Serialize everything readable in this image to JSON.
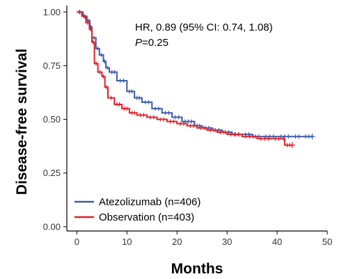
{
  "chart_data": {
    "type": "line",
    "title": "",
    "xlabel": "Months",
    "ylabel": "Disease-free survival",
    "xlim": [
      -2,
      50
    ],
    "ylim": [
      -0.02,
      1.03
    ],
    "xticks": [
      "0",
      "10",
      "20",
      "30",
      "40",
      "50"
    ],
    "xtick_values": [
      0,
      10,
      20,
      30,
      40,
      50
    ],
    "yticks": [
      "0.00",
      "0.25",
      "0.50",
      "0.75",
      "1.00"
    ],
    "ytick_values": [
      0,
      0.25,
      0.5,
      0.75,
      1.0
    ],
    "grid": false,
    "legend_position": "bottom-left",
    "annotations": {
      "hr_line": "HR, 0.89 (95% CI: 0.74, 1.08)",
      "p_italic": "P",
      "p_rest": "=0.25"
    },
    "series": [
      {
        "name": "Atezolizumab (n=406)",
        "color": "#3a5ba8",
        "x": [
          0,
          1.2,
          2.0,
          2.6,
          3.0,
          3.8,
          4.5,
          5.3,
          5.8,
          6.5,
          8.0,
          10.0,
          11.5,
          13.0,
          15.0,
          17.0,
          19.0,
          21.0,
          23.5,
          25.0,
          27.0,
          29.0,
          31.0,
          33.0,
          35.0,
          37.0,
          40.0,
          43.0,
          45.0,
          47.0
        ],
        "y": [
          1.0,
          0.98,
          0.96,
          0.93,
          0.88,
          0.83,
          0.8,
          0.77,
          0.74,
          0.72,
          0.68,
          0.63,
          0.6,
          0.58,
          0.55,
          0.53,
          0.51,
          0.49,
          0.47,
          0.46,
          0.45,
          0.44,
          0.43,
          0.43,
          0.42,
          0.42,
          0.42,
          0.42,
          0.42,
          0.42
        ]
      },
      {
        "name": "Observation (n=403)",
        "color": "#e0202a",
        "x": [
          0,
          1.0,
          1.8,
          2.5,
          3.0,
          3.5,
          4.2,
          5.0,
          5.6,
          6.2,
          7.5,
          9.0,
          10.5,
          12.0,
          14.0,
          16.0,
          18.0,
          20.0,
          22.0,
          24.0,
          26.0,
          28.0,
          30.0,
          33.0,
          36.0,
          39.0,
          41.0,
          41.5,
          43.0
        ],
        "y": [
          1.0,
          0.98,
          0.95,
          0.92,
          0.86,
          0.76,
          0.72,
          0.7,
          0.65,
          0.6,
          0.57,
          0.55,
          0.53,
          0.52,
          0.51,
          0.5,
          0.49,
          0.48,
          0.47,
          0.46,
          0.45,
          0.44,
          0.43,
          0.42,
          0.41,
          0.41,
          0.41,
          0.38,
          0.38
        ]
      }
    ]
  }
}
